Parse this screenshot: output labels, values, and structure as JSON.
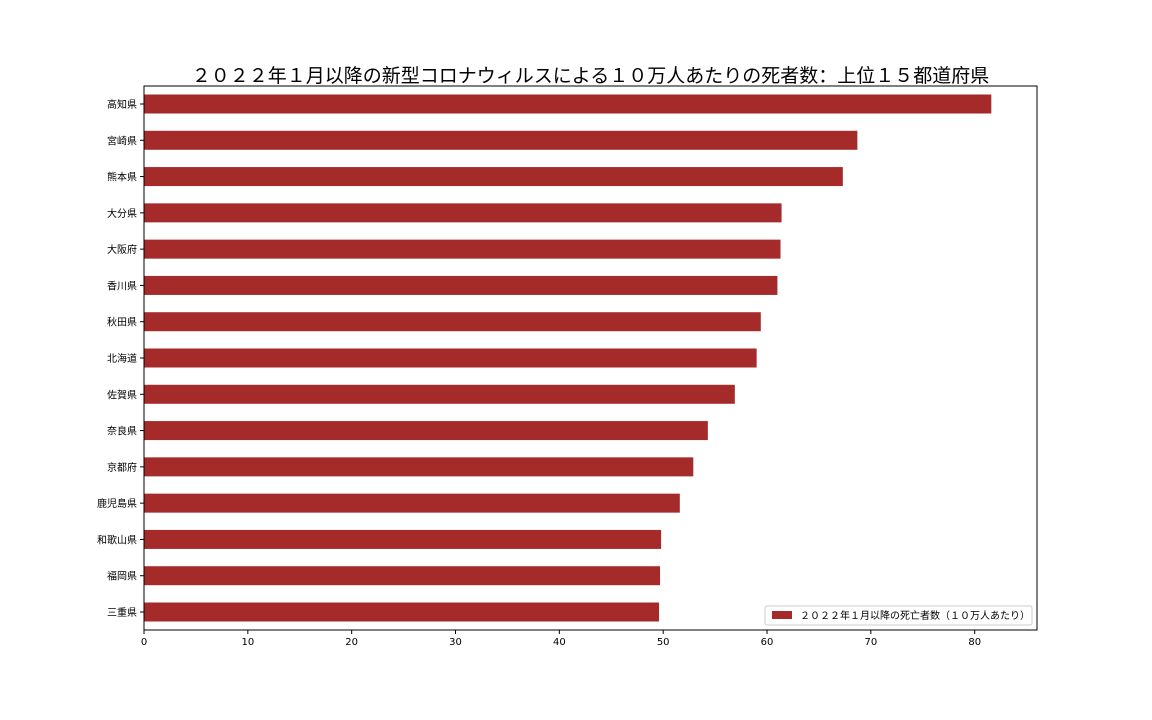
{
  "chart_data": {
    "type": "bar",
    "orientation": "horizontal",
    "title": "２０２２年１月以降の新型コロナウィルスによる１０万人あたりの死者数：上位１５都道府県",
    "categories": [
      "高知県",
      "宮崎県",
      "熊本県",
      "大分県",
      "大阪府",
      "香川県",
      "秋田県",
      "北海道",
      "佐賀県",
      "奈良県",
      "京都府",
      "鹿児島県",
      "和歌山県",
      "福岡県",
      "三重県"
    ],
    "series": [
      {
        "name": "２０２２年１月以降の死亡者数（１０万人あたり）",
        "color": "#a52a2a",
        "values": [
          81.6,
          68.7,
          67.3,
          61.4,
          61.3,
          61.0,
          59.4,
          59.0,
          56.9,
          54.3,
          52.9,
          51.6,
          49.8,
          49.7,
          49.6
        ]
      }
    ],
    "xlim": [
      0,
      86
    ],
    "xticks": [
      0,
      10,
      20,
      30,
      40,
      50,
      60,
      70,
      80
    ],
    "xlabel": "",
    "ylabel": "",
    "grid": false,
    "legend_position": "lower-right"
  }
}
